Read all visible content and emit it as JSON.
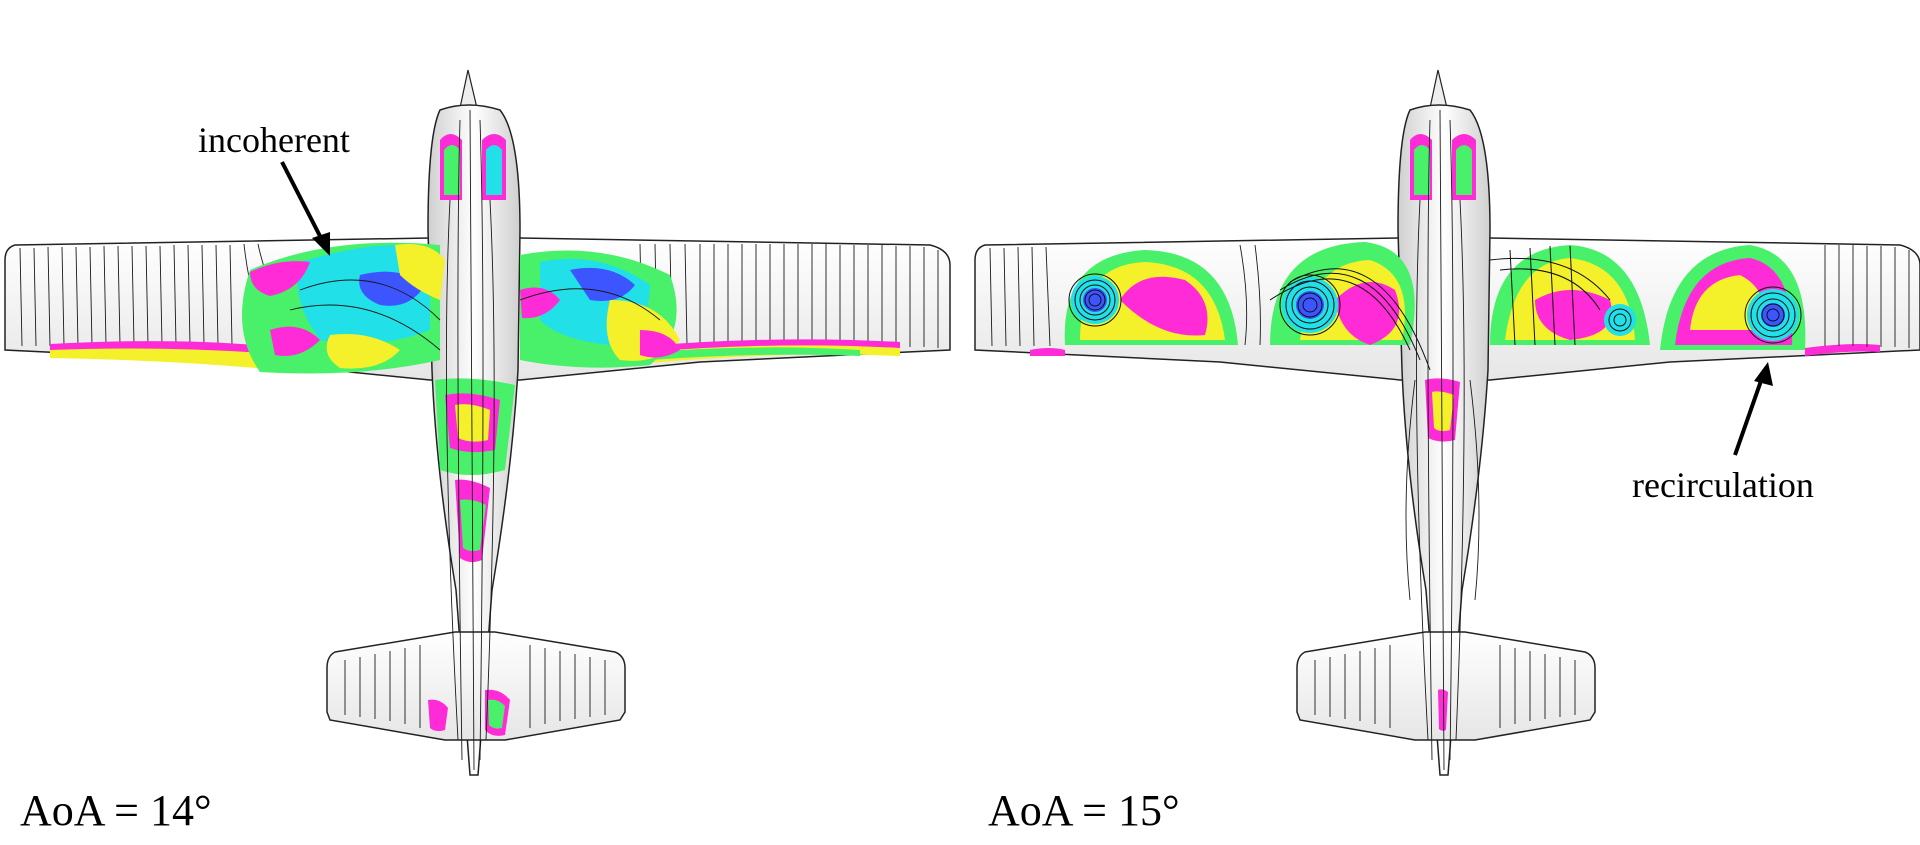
{
  "panels": [
    {
      "id": "left",
      "aoa_label": "AoA = 14°",
      "annotation": "incoherent"
    },
    {
      "id": "right",
      "aoa_label": "AoA = 15°",
      "annotation": "recirculation"
    }
  ],
  "colors": {
    "background": "#ffffff",
    "surface": "#ececec",
    "streamline": "#111111",
    "magenta": "#ff2bd6",
    "yellow": "#f4f12a",
    "green": "#49f06a",
    "cyan": "#22e0e8",
    "blue": "#3c55ff"
  }
}
